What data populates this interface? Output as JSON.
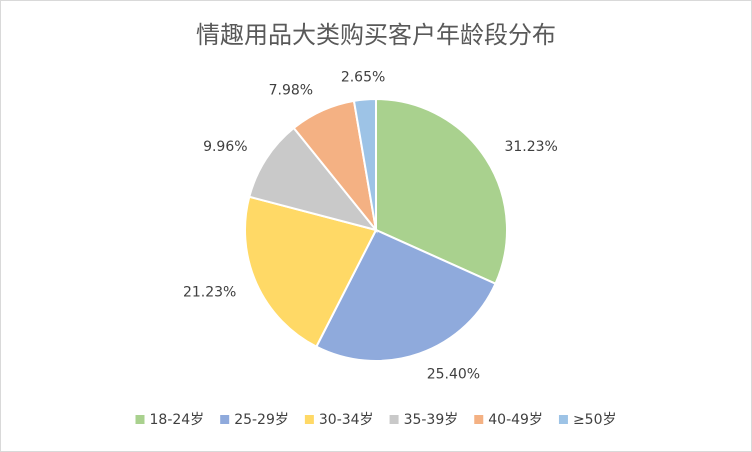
{
  "chart_data": {
    "type": "pie",
    "title": "情趣用品大类购买客户年龄段分布",
    "categories": [
      "18-24岁",
      "25-29岁",
      "30-34岁",
      "35-39岁",
      "40-49岁",
      "≥50岁"
    ],
    "values": [
      31.23,
      25.4,
      21.23,
      9.96,
      7.98,
      2.65
    ],
    "value_labels": [
      "31.23%",
      "25.40%",
      "21.23%",
      "9.96%",
      "7.98%",
      "2.65%"
    ],
    "colors": [
      "#a9d18e",
      "#8faadc",
      "#ffd966",
      "#c9c9c9",
      "#f4b183",
      "#9dc3e6"
    ],
    "legend": "bottom"
  }
}
